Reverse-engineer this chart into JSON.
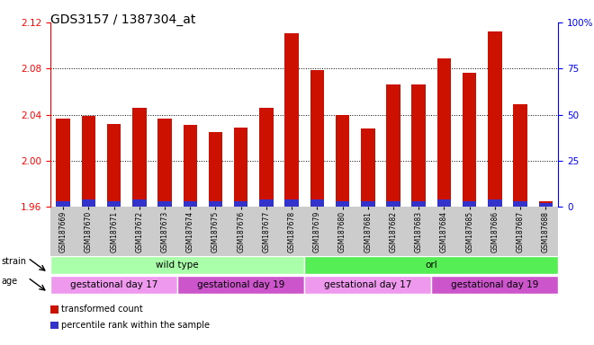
{
  "title": "GDS3157 / 1387304_at",
  "samples": [
    "GSM187669",
    "GSM187670",
    "GSM187671",
    "GSM187672",
    "GSM187673",
    "GSM187674",
    "GSM187675",
    "GSM187676",
    "GSM187677",
    "GSM187678",
    "GSM187679",
    "GSM187680",
    "GSM187681",
    "GSM187682",
    "GSM187683",
    "GSM187684",
    "GSM187685",
    "GSM187686",
    "GSM187687",
    "GSM187688"
  ],
  "transformed_count": [
    2.037,
    2.039,
    2.032,
    2.046,
    2.037,
    2.031,
    2.025,
    2.029,
    2.046,
    2.111,
    2.079,
    2.04,
    2.028,
    2.066,
    2.066,
    2.089,
    2.076,
    2.112,
    2.049,
    1.965
  ],
  "percentile_rank": [
    3,
    4,
    3,
    4,
    3,
    3,
    3,
    3,
    4,
    4,
    4,
    3,
    3,
    3,
    3,
    4,
    3,
    4,
    3,
    2
  ],
  "ylim_left": [
    1.96,
    2.12
  ],
  "ylim_right": [
    0,
    100
  ],
  "yticks_left": [
    1.96,
    2.0,
    2.04,
    2.08,
    2.12
  ],
  "yticks_right": [
    0,
    25,
    50,
    75,
    100
  ],
  "ytick_labels_right": [
    "0",
    "25",
    "50",
    "75",
    "100%"
  ],
  "bar_color": "#cc1100",
  "percentile_color": "#3333cc",
  "strain_groups": [
    {
      "label": "wild type",
      "start": 0,
      "end": 10,
      "color": "#aaffaa"
    },
    {
      "label": "orl",
      "start": 10,
      "end": 20,
      "color": "#55ee55"
    }
  ],
  "age_groups": [
    {
      "label": "gestational day 17",
      "start": 0,
      "end": 5,
      "color": "#ee99ee"
    },
    {
      "label": "gestational day 19",
      "start": 5,
      "end": 10,
      "color": "#cc55cc"
    },
    {
      "label": "gestational day 17",
      "start": 10,
      "end": 15,
      "color": "#ee99ee"
    },
    {
      "label": "gestational day 19",
      "start": 15,
      "end": 20,
      "color": "#cc55cc"
    }
  ],
  "legend_items": [
    {
      "label": "transformed count",
      "color": "#cc1100"
    },
    {
      "label": "percentile rank within the sample",
      "color": "#3333cc"
    }
  ],
  "bg_color": "#ffffff",
  "tickarea_color": "#cccccc",
  "title_fontsize": 10,
  "axis_fontsize": 7.5,
  "label_fontsize": 7.5
}
